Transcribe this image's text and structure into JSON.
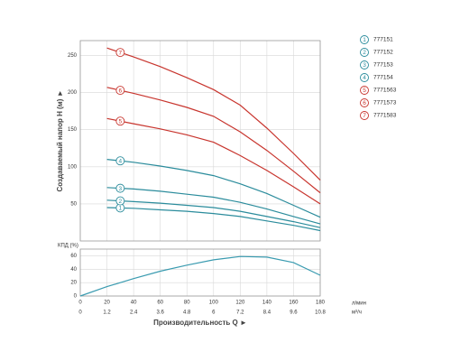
{
  "chart_data": [
    {
      "type": "line",
      "y_label": "Создаваемый напор H (м) ►",
      "x": [
        20,
        40,
        60,
        80,
        100,
        120,
        140,
        160,
        180
      ],
      "xlim": [
        0,
        180
      ],
      "ylim": [
        0,
        270
      ],
      "yticks": [
        50,
        100,
        150,
        200,
        250
      ],
      "grid": true,
      "legend": "right",
      "series": [
        {
          "name": "777151",
          "label": "1",
          "color": "#2b8c9c",
          "values": [
            45,
            44,
            42,
            40,
            37,
            33,
            27,
            21,
            14
          ]
        },
        {
          "name": "777152",
          "label": "2",
          "color": "#2b8c9c",
          "values": [
            55,
            53,
            51,
            48,
            45,
            40,
            33,
            26,
            18
          ]
        },
        {
          "name": "777153",
          "label": "3",
          "color": "#2b8c9c",
          "values": [
            72,
            70,
            67,
            63,
            59,
            52,
            43,
            33,
            23
          ]
        },
        {
          "name": "777154",
          "label": "4",
          "color": "#2b8c9c",
          "values": [
            110,
            106,
            101,
            95,
            88,
            77,
            64,
            48,
            32
          ]
        },
        {
          "name": "7771563",
          "label": "5",
          "color": "#c8352e",
          "values": [
            165,
            158,
            151,
            143,
            133,
            115,
            95,
            73,
            50
          ]
        },
        {
          "name": "7771573",
          "label": "6",
          "color": "#c8352e",
          "values": [
            207,
            199,
            190,
            180,
            168,
            147,
            122,
            94,
            65
          ]
        },
        {
          "name": "7771583",
          "label": "7",
          "color": "#c8352e",
          "values": [
            260,
            248,
            235,
            220,
            204,
            183,
            152,
            118,
            82
          ]
        }
      ]
    },
    {
      "type": "line",
      "y_label": "КПД (%)",
      "x_label": "Производительность Q ►",
      "x_unit": "л/мин",
      "x2_unit": "м³/ч",
      "x": [
        0,
        20,
        40,
        60,
        80,
        100,
        120,
        140,
        160,
        180
      ],
      "xlim": [
        0,
        180
      ],
      "xticks": [
        0,
        20,
        40,
        60,
        80,
        100,
        120,
        140,
        160,
        180
      ],
      "x2lim": [
        0,
        10.8
      ],
      "x2ticks": [
        0,
        1.2,
        2.4,
        3.6,
        4.8,
        6,
        7.2,
        8.4,
        9.6,
        10.8
      ],
      "ylim": [
        0,
        70
      ],
      "yticks": [
        0,
        20,
        40,
        60
      ],
      "grid": true,
      "series": [
        {
          "name": "КПД",
          "color": "#3a9bb0",
          "values": [
            0,
            14,
            26,
            37,
            46,
            54,
            59,
            58,
            50,
            31
          ]
        }
      ]
    }
  ]
}
